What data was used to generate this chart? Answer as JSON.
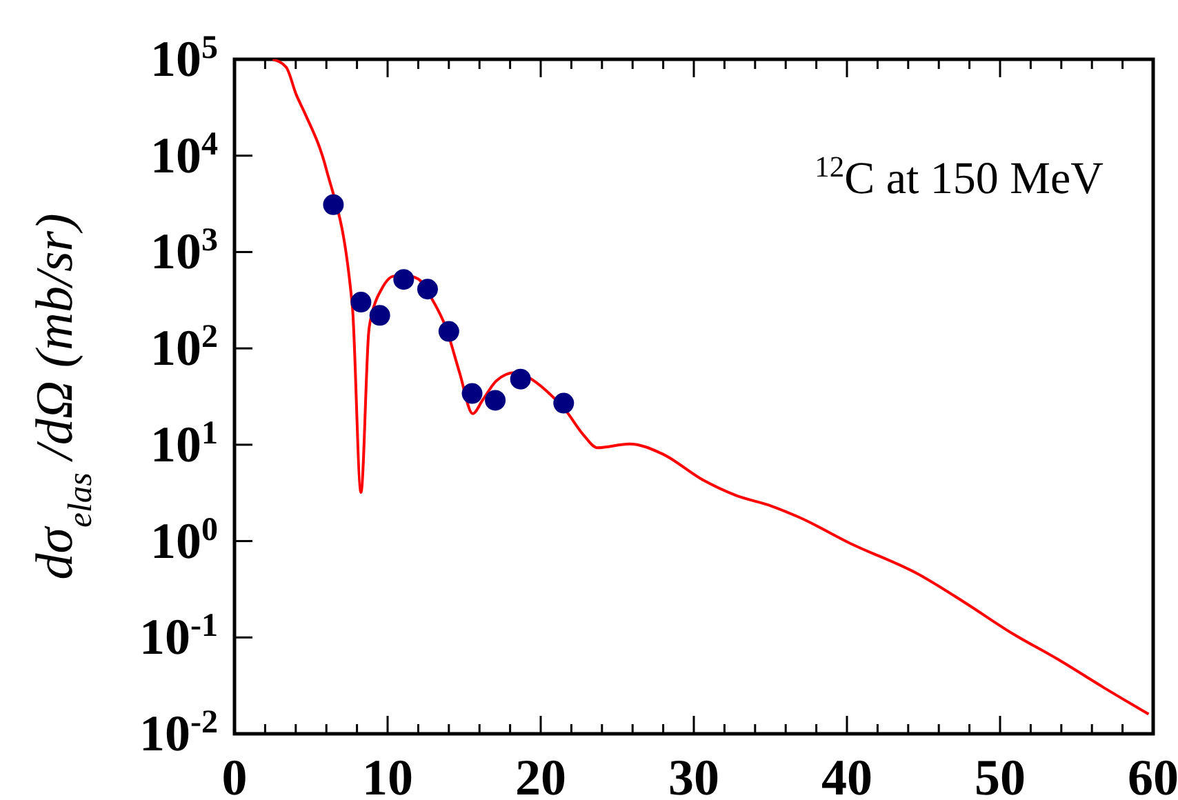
{
  "chart_data": {
    "type": "line",
    "ylabel": "dσ$_{elas}$ /dΩ (mb/sr)",
    "annotations": [
      "$^{12}$C at 150 MeV"
    ],
    "log": "y",
    "grid": false,
    "xlim": [
      0,
      60
    ],
    "xticks": [
      0,
      {
        "value": 2,
        "label": null
      },
      {
        "value": 4,
        "label": null
      },
      {
        "value": 6,
        "label": null
      },
      {
        "value": 8,
        "label": null
      },
      10,
      {
        "value": 12,
        "label": null
      },
      {
        "value": 14,
        "label": null
      },
      {
        "value": 16,
        "label": null
      },
      {
        "value": 18,
        "label": null
      },
      20,
      {
        "value": 22,
        "label": null
      },
      {
        "value": 24,
        "label": null
      },
      {
        "value": 26,
        "label": null
      },
      {
        "value": 28,
        "label": null
      },
      30,
      {
        "value": 32,
        "label": null
      },
      {
        "value": 34,
        "label": null
      },
      {
        "value": 36,
        "label": null
      },
      {
        "value": 38,
        "label": null
      },
      40,
      {
        "value": 42,
        "label": null
      },
      {
        "value": 44,
        "label": null
      },
      {
        "value": 46,
        "label": null
      },
      {
        "value": 48,
        "label": null
      },
      50,
      {
        "value": 52,
        "label": null
      },
      {
        "value": 54,
        "label": null
      },
      {
        "value": 56,
        "label": null
      },
      {
        "value": 58,
        "label": null
      },
      60
    ],
    "ylim": [
      0.01,
      100000
    ],
    "yticks": [
      {
        "value": 0.01,
        "label": "10$^{-2}$"
      },
      {
        "value": 0.1,
        "label": "10$^{-1}$"
      },
      {
        "value": 1,
        "label": "10$^{0}$"
      },
      {
        "value": 10,
        "label": "10$^{1}$"
      },
      {
        "value": 100,
        "label": "10$^{2}$"
      },
      {
        "value": 1000,
        "label": "10$^{3}$"
      },
      {
        "value": 10000,
        "label": "10$^{4}$"
      },
      {
        "value": 100000,
        "label": "10$^{5}$"
      }
    ],
    "series": [
      {
        "color": "#ff0000",
        "marker": "none",
        "line_style": "solid",
        "x": [
          2.5,
          3.37,
          4.04,
          4.6,
          6.0,
          7.7,
          8.26,
          8.77,
          9.0,
          9.6,
          10.36,
          11.1,
          12.0,
          12.9,
          13.8,
          14.7,
          15.56,
          16.2,
          17.1,
          18.3,
          19.2,
          20.4,
          21.6,
          22.8,
          23.7,
          25.8,
          27.9,
          30.6,
          32.7,
          35.1,
          36.9,
          40.2,
          44.7,
          47.7,
          50.8,
          53.8,
          56.8,
          59.7
        ],
        "values": [
          100000,
          83000,
          42700,
          27500,
          7200,
          270,
          3.2,
          150,
          235,
          410,
          560,
          575,
          525,
          325,
          166,
          56,
          21,
          29,
          46,
          56,
          50,
          36,
          23,
          12.6,
          9.3,
          10.2,
          8.1,
          4.3,
          3.0,
          2.3,
          1.76,
          0.95,
          0.45,
          0.23,
          0.11,
          0.059,
          0.03,
          0.016
        ]
      },
      {
        "type": "scatter",
        "color": "#000080",
        "marker": "circle",
        "x": [
          6.46,
          8.26,
          9.49,
          11.05,
          12.61,
          14.0,
          15.52,
          17.03,
          18.68,
          21.5
        ],
        "values": [
          3100,
          302,
          220,
          519,
          412,
          150,
          34,
          28.9,
          48,
          27
        ]
      }
    ]
  }
}
